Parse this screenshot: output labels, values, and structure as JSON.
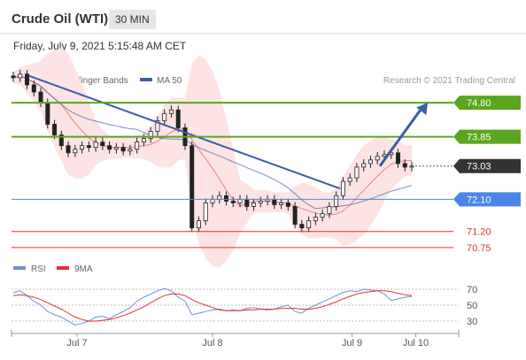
{
  "header": {
    "title": "Crude Oil (WTI)",
    "timeframe": "30 MIN",
    "timestamp": "Friday, July 9, 2021 5:15:48 AM CET"
  },
  "colors": {
    "resistance": "#5aa61e",
    "pivot": "#4a86e8",
    "support": "#e03030",
    "current": "#333333",
    "trendline": "#3a5ea8",
    "ma20": "#f08080",
    "ma50": "#3a5ea8",
    "bollinger_fill": "#fde3e3",
    "rsi": "#6a8fd8",
    "rsi_ma": "#e03030"
  },
  "chart_data": [
    {
      "type": "candlestick",
      "legend": [
        {
          "label": "MA 20 + Bollinger Bands",
          "color": "#f08080"
        },
        {
          "label": "MA 50",
          "color": "#3a5ea8"
        }
      ],
      "credit": "Research © 2021 Trading Central",
      "x_ticks": [
        "Jul 7",
        "Jul 8",
        "Jul 9",
        "Jul 10"
      ],
      "ylim": [
        70.5,
        75.2
      ],
      "levels": [
        {
          "value": 74.8,
          "label": "74.80",
          "kind": "resistance",
          "style": "solid"
        },
        {
          "value": 73.85,
          "label": "73.85",
          "kind": "resistance",
          "style": "solid"
        },
        {
          "value": 73.03,
          "label": "73.03",
          "kind": "current",
          "style": "dotted"
        },
        {
          "value": 72.1,
          "label": "72.10",
          "kind": "pivot",
          "style": "solid"
        },
        {
          "value": 71.2,
          "label": "71.20",
          "kind": "support",
          "style": "solid"
        },
        {
          "value": 70.75,
          "label": "70.75",
          "kind": "support",
          "style": "solid"
        }
      ],
      "trendline": {
        "start": [
          0.04,
          75.55
        ],
        "end": [
          0.82,
          72.4
        ]
      },
      "projection_arrow": {
        "start": [
          0.92,
          73.03
        ],
        "end": [
          1.04,
          74.8
        ]
      },
      "close_series": [
        75.5,
        75.6,
        75.3,
        75.1,
        74.8,
        74.2,
        73.9,
        73.6,
        73.4,
        73.5,
        73.6,
        73.55,
        73.7,
        73.6,
        73.5,
        73.55,
        73.45,
        73.5,
        73.7,
        73.8,
        74.0,
        74.3,
        74.5,
        74.6,
        74.1,
        73.6,
        71.3,
        71.5,
        72.0,
        72.1,
        72.2,
        72.05,
        72.0,
        72.1,
        71.9,
        72.0,
        72.05,
        72.1,
        71.95,
        72.0,
        71.9,
        71.4,
        71.3,
        71.5,
        71.6,
        71.7,
        71.9,
        72.2,
        72.6,
        72.7,
        73.0,
        73.1,
        73.2,
        73.3,
        73.35,
        73.4,
        73.1,
        73.0,
        73.03
      ]
    },
    {
      "type": "line",
      "legend": [
        {
          "label": "RSI",
          "color": "#6a8fd8"
        },
        {
          "label": "9MA",
          "color": "#e03030"
        }
      ],
      "ylim": [
        20,
        80
      ],
      "y_ticks": [
        "70",
        "50",
        "30"
      ],
      "series": [
        {
          "name": "RSI",
          "values": [
            66,
            68,
            62,
            55,
            50,
            42,
            38,
            35,
            30,
            25,
            27,
            30,
            35,
            36,
            33,
            38,
            42,
            47,
            55,
            60,
            64,
            68,
            71,
            68,
            60,
            55,
            38,
            40,
            42,
            44,
            45,
            43,
            44,
            43,
            46,
            47,
            45,
            44,
            45,
            48,
            50,
            42,
            40,
            46,
            50,
            54,
            58,
            62,
            66,
            68,
            67,
            70,
            69,
            68,
            64,
            56,
            58,
            60,
            61
          ]
        },
        {
          "name": "9MA",
          "values": [
            62,
            63,
            62,
            60,
            57,
            53,
            49,
            45,
            40,
            35,
            32,
            30,
            30,
            31,
            32,
            34,
            37,
            40,
            44,
            48,
            53,
            58,
            62,
            64,
            64,
            62,
            57,
            53,
            50,
            47,
            44,
            43,
            43,
            43,
            44,
            44,
            45,
            45,
            45,
            46,
            46,
            46,
            45,
            45,
            46,
            48,
            51,
            54,
            58,
            61,
            64,
            66,
            67,
            68,
            68,
            67,
            65,
            63,
            62
          ]
        }
      ]
    }
  ]
}
